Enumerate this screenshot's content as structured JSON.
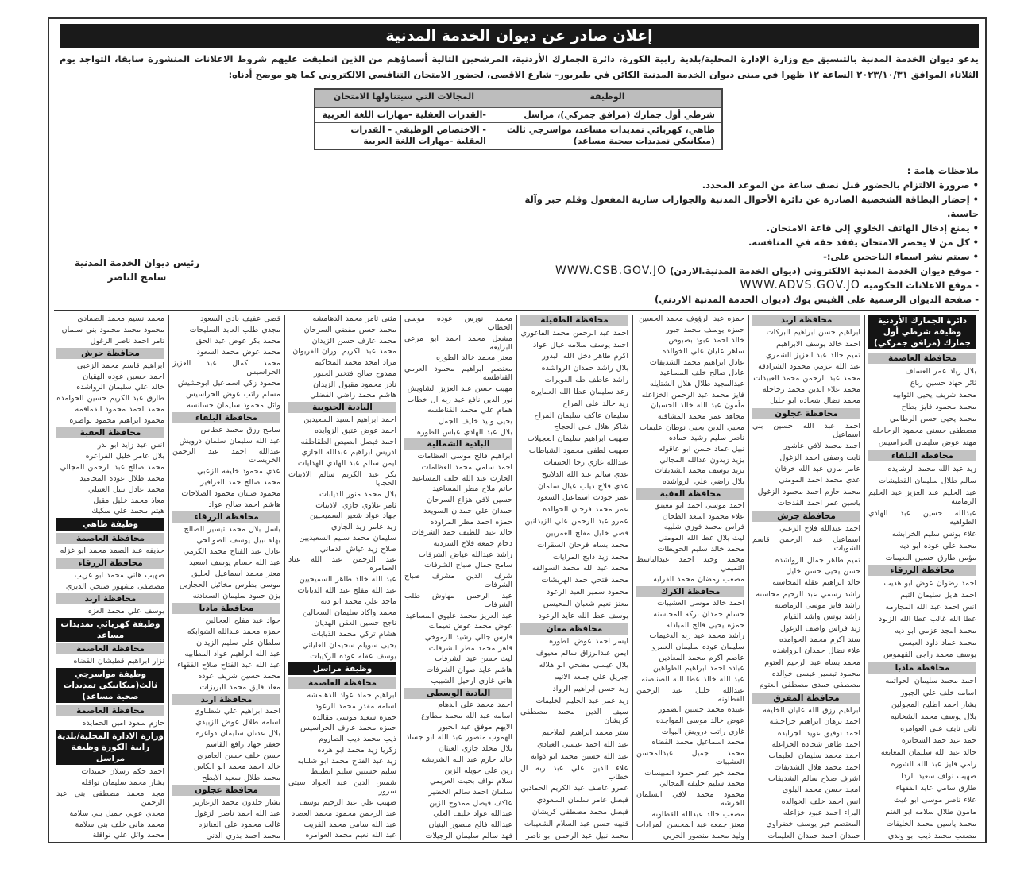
{
  "title": "إعلان صادر عن ديوان الخدمة المدنية",
  "intro": "يدعو ديوان الخدمة المدنية بالتنسيق مع وزارة الإدارة المحلية/بلدية رابية الكورة، دائرة الجمارك الأردنية، المرشحين التالية أسماؤهم من الذين انطبقت عليهم شروط الاعلانات المنشورة سابقا، التواجد يوم الثلاثاء الموافق ٢٠٢٣/١٠/٣١ الساعة ١٢ ظهرا في مبنى ديوان الخدمة المدنية الكائن في طبربور- شارع الاقصى، لحضور الامتحان التنافسي الالكتروني كما هو موضح أدناه:",
  "jobs_table": {
    "headers": [
      "الوظيفة",
      "المجالات التي سيتناولها الامتحان"
    ],
    "rows": [
      [
        "شرطي أول جمارك (مرافق جمركي)، مراسل",
        "-القدرات العقلية -مهارات اللغة العربية"
      ],
      [
        "طاهي، كهربائي تمديدات مساعد، مواسرجي ثالث (ميكانيكي تمديدات صحية مساعد)",
        "- الاختصاص الوظيفي - القدرات العقلية -مهارات اللغة العربية"
      ]
    ]
  },
  "notes": {
    "heading": "ملاحظات هامة :",
    "items": [
      "• ضرورة الالتزام بالحضور قبل نصف ساعة من الموعد المحدد.",
      "• إحضار البطاقة الشخصية الصادرة عن دائرة الأحوال المدنية والجوازات سارية المفعول وقلم حبر وآلة حاسبة.",
      "• يمنع إدخال الهاتف الخلوي إلى قاعة الامتحان.",
      "• كل من لا يحضر الامتحان يفقد حقه في المنافسة.",
      "• سيتم نشر اسماء الناجحين على:-"
    ],
    "links": [
      {
        "label": "- موقع ديوان الخدمة المدنية الالكتروني (ديوان الخدمة المدنية.الاردن)",
        "url": "WWW.CSB.GOV.JO"
      },
      {
        "label": "- موقع الاعلانات الحكومية",
        "url": "WWW.ADVS.GOV.JO"
      },
      {
        "label": "- صفحة الديوان الرسمية على الفيس بوك (ديوان الخدمة المدنية الاردني)",
        "url": ""
      }
    ]
  },
  "signature": {
    "role": "رئيس ديوان الخدمة المدنية",
    "name": "سامح الناصر"
  },
  "columns": [
    [
      {
        "b": "دائرة الجمارك الأردنية وظيفة شرطي أول جمارك (مرافق جمركي)"
      },
      {
        "h": "محافظة العاصمة"
      },
      "بلال زياد عمر العساف",
      "ثائر جهاد حسين زباع",
      "محمد شريف يحيى الثوابيه",
      "محمد محمود فايز بطاح",
      "محمد يحيى حسن الرطامي",
      "مصطفى حسني محمود الرحاحله",
      "مهند عوض سليمان الحراسيس",
      {
        "h": "محافظة البلقاء"
      },
      "زيد عبد الله محمد الرشايده",
      "سالم طلال سليمان القطيشات",
      "عبد الحليم عبد العزيز عبد الحليم الرمامنه",
      "عبدالله حسين عبد الهادي الطواهيه",
      "علاء يونس سليم الخرابشه",
      "محمد علي عوده ابو ديه",
      "مؤمن طارق حسين النعيمات",
      {
        "h": "محافظة الزرقاء"
      },
      "احمد رضوان عوض ابو هديب",
      "احمد هايل سليمان التيم",
      "انس احمد عبد الله المجارمه",
      "عطا الله غالب عطا الله الزبود",
      "محمد امجد عزمي ابو ديه",
      "محمد عماد داود العيسى",
      "يوسف محمد راجي القهموس",
      {
        "h": "محافظة مادبا"
      },
      "احمد محمد سليمان الحواتمه",
      "اسامه خلف علي الجبور",
      "بشار احمد اطليح المجولين",
      "بلال يوسف محمد الشخانبه",
      "ثاني نايف علي العوامره",
      "حمد عيد حمد الشخاتره",
      "خالد عبد الله سليمان المعايعه",
      "رامي فايز عبد الله الشوره",
      "صهيب نواف سعيد الردا",
      "طارق سامي عايد الفقهاء",
      "علاء ناصر موسى ابو غيث",
      "مامون طلال سلامه ابو الغنم",
      "محمد ياسين محمد الخليفات",
      "مصعب محمد ذيب ابو وندي"
    ],
    [
      {
        "h": "محافظة اربد"
      },
      "ابراهيم حسن ابراهيم البركات",
      "احمد خالد يوسف الابراهيم",
      "تميم خالد عبد العزيز الشمري",
      "عبد الله عزمي محمود الشرادقه",
      "محمد عبد الرحمن محمد العبيدات",
      "محمد علاء الدين محمد رحاحله",
      "محمد نضال شحاده ابو جليل",
      {
        "h": "محافظة عجلون"
      },
      "احمد عبد الله حسين بني اسماعيل",
      "احمد محمد لافي عاشور",
      "ثابت وصفي احمد الزغول",
      "عامر مازن عبد الله خرفان",
      "عدي محمد احمد المومني",
      "محمد حازم احمد محمود الزغول",
      "ياسين عمر احمد القدحات",
      {
        "h": "محافظة جرش"
      },
      "احمد عبدالله فلاح الزعبي",
      "اسماعيل عبد الرحمن قاسم الشويات",
      "تميم طاهر جمال الرواشده",
      "حسن يحيى حسن خليل",
      "خالد ابراهيم عقله المحاسنه",
      "راشد رسمي عبد الرحيم محاسنه",
      "راشد فايز موسى الرماضنه",
      "راشد يونس واشد القيام",
      "زيد فراس واصف الزغول",
      "سند اكرم محمد الحوامده",
      "علاء نضال حمدان الرواشده",
      "محمد بسام عبد الرحيم العتوم",
      "محمود تيسير عيسى خوالده",
      "مصطفى حمدى مصطفى العتوم",
      {
        "h": "محافظة المفرق"
      },
      "ابراهيم رزق الله عليان الخليفه",
      "احمد برهان ابراهيم حراحشه",
      "احمد توفيق عويد الجرايده",
      "احمد طاهر شحاده الخزاعله",
      "احمد محمد سليمان العليمات",
      "احمد محمد هلال الشديفات",
      "اشرف صلاح سالم الشديفات",
      "امجد حسن محمد البلوي",
      "انس احمد خلف الخوالده",
      "البراء احمد عبود خزاعله",
      "المعتصم خير يوسف خضراوي",
      "حمدان احمد حمدان العليمات"
    ],
    [
      "حمزه عبد الرؤوف محمد الحسين",
      "حمزه يوسف محمد جبور",
      "خالد احمد عبود بصبوص",
      "ساهر عليان علي الخوالده",
      "عادل ابراهيم محمد الشديفات",
      "عادل صالح خلف المساعيد",
      "عبدالمجيد طلال هلال الشتايله",
      "فايز محمد عبد الرحمن الخزاعله",
      "مأمون عبد الله خالد الحسبان",
      "مجاهد عمر محمد المشاقبه",
      "محيي الدين يحيى نوطان عليمات",
      "ناصر سليم رشيد حماده",
      "نبيل عماد حسن ابو عاقوله",
      "يزيد زيدون عدالله المجالي",
      "يزيد يوسف محمد الشديفات",
      "بلال راضي علي الرواشده",
      {
        "h": "محافظة العقبة"
      },
      "احمد موسى احمد ابو معيتق",
      "علاء محمود اسعد الطحان",
      "فراس محمد فوزي شلبيه",
      "ليث بلال عطا الله المومني",
      "محمد خالد سليم الحويطات",
      "محمد وحيد احمد عبدالباسط التميمي",
      "مصعب رمضان محمد الفرايه",
      {
        "h": "محافظة الكرك"
      },
      "احمد خالد موسى العشيبات",
      "حسام حمدان بركه المحاسنه",
      "حمزه يحيى فالح المبادله",
      "راشد محمد عيد ربه الدغيمات",
      "سليمان عوده سليمان العمرو",
      "عاصم اكرم محمد المعادين",
      "عباده احمد ابراهيم الطواهين",
      "عبد الله خالد عطا الله الصناصنه",
      "عبدالله خليل عبد الرحمن القطاونه",
      "عبيده محمد حسين الضمور",
      "عوض خالد موسى المواجده",
      "غازي راتب درويش البوات",
      "محمد اسماعيل محمد القضاه",
      "محمد جميل عبدالمحسن العشيبات",
      "محمد خير عمر حمود المبيسات",
      "محمد سليم خليفه المجالي",
      "محمود محمد لافي السلمان الخرشه",
      "مصعب خالد عبدالله القطاونه",
      "معتز جمعه عبد المحسن المرادات",
      "وليد محمد منصور الحربي"
    ],
    [
      {
        "h": "محافظة الطفيلة"
      },
      "احمد عبد الرحمن محمد الفاعوري",
      "احمد يوسف سلامه عيال عواد",
      "اكرم طاهر دخل الله البدور",
      "بلال راشد حمدان الرواشده",
      "راشد عاطف طه العويرات",
      "رعد سليمان عطا الله العمايره",
      "زيد خالد علي المراح",
      "سليمان عاكف سليمان المراح",
      "شاكر هلال علي الحجاج",
      "صهيب ابراهيم سليمان العجيلات",
      "صهيب لطفي محمود الشباطات",
      "عبدالله غازي رجا الحتيفات",
      "عدي سالم عبد الله الدلابيح",
      "عدي فلاح ذياب عيال سلمان",
      "عمر جودت اسماعيل السعود",
      "عمر محمد فرحان الخوالده",
      "عمرو عبد الرحمن علي الزيدانين",
      "قصي خليل مفلح العمريين",
      "محمد بسام فرحان السقرات",
      "محمد زيد دايج المرايات",
      "محمد عبد الله محمد السوالقه",
      "محمد فتحي حمد الهريشات",
      "محمود سمير العبد الرعود",
      "معتز نعيم شعبان المحيسن",
      "يوسف عطا الله عايد الرعود",
      {
        "h": "محافظة معان"
      },
      "ايسر احمد عوض الطوره",
      "ايمن عبدالرزاق سالم معيوف",
      "بلال عيسى مضحي ابو هلاله",
      "جبريل علي جمعه الاتيم",
      "زيد حسن ابراهيم الرواد",
      "زيد عمر عبد الحليم الخليفات",
      "سيف الدين محمد مصطفى كريشان",
      "ستر محمد ابراهيم الملاحيم",
      "عبد الله احمد عيسى العبادي",
      "عبد الله حسين محمد ابو ذوايه",
      "علاء الدين علي عبد ربه ال خطاب",
      "عمرو عاطف عبد الكريم الحمادين",
      "فيصل عامر سلمان السعودي",
      "فيصل محمد مصطفى كريشان",
      "قتيبه حسن عبد السلام الشعيبات",
      "محمد نبيل عبد الرحمن ابو ناصر"
    ],
    [
      "محمد نورس عوده موسى الخطاب",
      "مشعل محمد احمد ابو مرعي البزايعه",
      "معتز محمد خالد الطوره",
      "معتصم ابراهيم محمود العرمي القناطسه",
      "مهيب حسن عبد العزيز الشاويش",
      "نور الدين نافع عبد ربه ال خطاب",
      "همام علي محمد القناطسه",
      "يحيى وليد خليف الجمل",
      "بلال عبد الهادي عباس الطوره",
      {
        "h": "البادية الشمالية"
      },
      "ابراهيم فالح موسى العظامات",
      "احمد سامي محمد العظامات",
      "الحارث عبد الله خلف المساعيد",
      "حاتم ملاح مطر المساعيد",
      "حسين لافي هزاع السرحان",
      "حمدان علي حمدان السويعد",
      "حمزه احمد مطر المزاوده",
      "خالد عبد اللطيف حمد الشرفات",
      "دحام جمعه فلاح السرديه",
      "راشد عبدالله عياض الشرفات",
      "سامح جمال صباح الشرفات",
      "شرف الدين مشرف صباح الشرفات",
      "عبد الرحمن مهاوش طلب الشرفات",
      "عبد العزيز محمد عليوي المساعيد",
      "عوض محمد عوض تعيمات",
      "فارس جالي رشيد الزموخي",
      "قاهر محمد مطر الشرفات",
      "ليث حسن عيد الشرفات",
      "هاشم عايد صوان الشرفات",
      "هاني غازي ارحيل الشبيب",
      {
        "h": "البادية الوسطى"
      },
      "احمد محمد علي الدهام",
      "اسامه عبد الله محمد مطاوع",
      "الايهم موفق عيد الجبور",
      "الهموب منصور عبد الله ابو جساد",
      "بلال مخلد جازي الغيثان",
      "خالد حازم عبد الله الشريشه",
      "زين علي حويله الزبن",
      "سلام نواف بخيت العريمي",
      "سلمان احمد سالم الخضير",
      "عاكف فيصل ممدوح الزبن",
      "عبدالله عواد خليف العلي",
      "عبدالله فالح منصور البنيان",
      "فهد سالم سليمان الرجيلات"
    ],
    [
      "مثنى ثامر محمد الدهامشه",
      "محمد حسن مفضي السرحان",
      "محمد عارف حسن الزيدان",
      "محمد عبد الكريم نوران الفريوان",
      "مراد امجد محمد المحاكيم",
      "ممدوح صالح فتخير الجبور",
      "نادر محمود مقبول الزيدان",
      "هاشم محمد راضي الفضلي",
      {
        "h": "البادية الجنوبية"
      },
      "احمد ابراهيم السيد السعيدين",
      "احمد عوض عتيق الزوايده",
      "احمد فيصل ابصيص الطقاطقه",
      "ادريس ابراهيم عبدالله الجازي",
      "ايمن سالم عبد الهادي الهدايات",
      "بكر عبد الكريم سالم الاذينات الحجايا",
      "بلال محمد منور الذيابات",
      "ثامر علاوي جازي الاذينات",
      "جهاد عواد شعير السميحيين",
      "زيد عامر زيد الجازي",
      "سليمان محمد سليم السعيديين",
      "صلاح زيد عياش الدماني",
      "عبد الرحمن عبد الله عتاد العمامره",
      "عبد الله خالد طاهر السميحيين",
      "عبد الله مفلح عبد الله الذيابات",
      "ماجد علي محمد ابو دنه",
      "محمد واكاد سليمان السحالين",
      "ناجح حسين العقن الهديان",
      "هشام تركي محمد الذيابات",
      "يحيى سويلم سحيمان العلياني",
      "يوسف عقله عوده الركيبات",
      {
        "b": "وظيفة مراسل"
      },
      {
        "h": "محافظة العاصمة"
      },
      "ابراهيم حماد عواد الدهامشه",
      "اسامه مقدر محمد الرعود",
      "حمزه سعيد موسى مقالده",
      "حمزه محمد عارف الحراسيس",
      "ذيب محمد ذيب الصاروم",
      "زكريا زيد محمد ابو هرده",
      "زيد عبد الفتاح محمد ابو شلبايه",
      "سليم حسنين سليم ابطيبط",
      "شمس الدين عبد الجواد سبتي سرور",
      "صهيب علي عبد الرحيم يوسف",
      "عبد الرحمن محمود محمد العصاد",
      "عبد الله سامي محمد القريب",
      "عبد الله نعيم محمد العوامره"
    ],
    [
      "قصي عفيف بادي السعود",
      "مجدي طلب العابد السليحات",
      "محمد بكر عوض عبد الحق",
      "محمد عوض محمد السعود",
      "محمد كمال عبد العزيز الحراسيس",
      "محمود زكي اسماعيل ابوحشيش",
      "مسلم راتب عوض الحراسيس",
      "وائل محمود سليمان حسانسه",
      {
        "h": "محافظة البلقاء"
      },
      "سامح رزق محمد عطاس",
      "عبد الله سليمان سلمان درويش",
      "عبدالله احمد عبد الرحمن الخريسات",
      "عدي محمود خليفه الزعبي",
      "محمد صالح حمد الغرافير",
      "محمود صبتان محمود الصلاحات",
      "هاشم احمد صالح عواد",
      {
        "h": "محافظة الزرقاء"
      },
      "باسل بلال محمد تيسير الصالح",
      "بهاء نبيل يوسف الصوالحي",
      "عادل عبد الفتاح محمد الكرمي",
      "عبد الله حسام يوسف اسعيد",
      "معتز محمد اسماعيل الحليق",
      "موسى بطرس مخائيل الحجازين",
      "يزن حمود سليمان السعادنه",
      {
        "h": "محافظة مادبا"
      },
      "جواد عيد مفلح العجالين",
      "حمزه محمد عبدالله الشوابكه",
      "سلطان علي سليم الزيدان",
      "عبد الله ابراهيم عواد المطابيه",
      "عبد الله عبد الفتاح صلاح الفقهاء",
      "محمد حسين شريف عوده",
      "معاذ فايق محمد البريزات",
      {
        "h": "محافظة اربد"
      },
      "احمد ابراهيم علي شطناوي",
      "اسامه طلال عوض الزبيدي",
      "بلال عدنان سليمان دواغره",
      "جعفر جهاد رافع القاسم",
      "حسن خلف حسن العامري",
      "خالد احمد محمد ابو الكاس",
      "محمد طلال سعيد الابطح",
      {
        "h": "محافظة عجلون"
      },
      "بشار خلدون محمد الزعارير",
      "عبد الله احمد ناصر الزغول",
      "غالب محمود علي العنانزه",
      "محمد احمد بدري الدني"
    ],
    [
      "محمد نسيم محمد الصمادي",
      "محمود محمد محمود بني سلمان",
      "تامر احمد ناصر الزغول",
      {
        "h": "محافظة جرش"
      },
      "ابراهيم قاسم محمد الزعبي",
      "احمد حسين عوده الهقيان",
      "خالد علي سليمان الرواشده",
      "طارق عبد الكريم حسين الحوامده",
      "محمد احمد محمود القماقمه",
      "محمود ابراهيم محمود نواصره",
      {
        "h": "محافظة العقبة"
      },
      "انس عيد زايد ابو بدر",
      "بلال عامر خليل القراعره",
      "محمد صالح عبد الرحمن المجالي",
      "محمد طلال عوده المحاميد",
      "محمد عادل نبيل العتيلي",
      "معاذ محمد خليل مقبل",
      "هيثم محمد علي سكيك",
      {
        "b": "وظيفة طاهي"
      },
      {
        "h": "محافظة العاصمة"
      },
      "حذيفه عبد الصمد محمد ابو غزله",
      {
        "h": "محافظة الزرقاء"
      },
      "صهيب هاني محمد ابو غريب",
      "مصطفى مشهور صبحي الديري",
      {
        "h": "محافظة اربد"
      },
      "يوسف علي محمد العزه",
      {
        "b": "وظيفة كهربائي تمديدات مساعد"
      },
      {
        "h": "محافظة العاصمة"
      },
      "نزار ابراهيم قطيشان القضاه",
      {
        "b": "وظيفة مواسرجي ثالث(ميكانيكي تمديدات صحية مساعد)"
      },
      {
        "h": "محافظة العاصمة"
      },
      "حازم سعود امين الحمايده",
      {
        "b": "وزارة الادارة المحلية/بلدية رابية الكورة وظيفة مراسل"
      },
      "احمد حكم رسلان حميدات",
      "بشار محمد سليمان نواقله",
      "مجد محمد مصطفى بني عبد الرحمن",
      "مجدي عوني جميل بني سلامة",
      "محمد هاني خلف بني سلامة",
      "محمد وائل علي نواقلة"
    ]
  ]
}
